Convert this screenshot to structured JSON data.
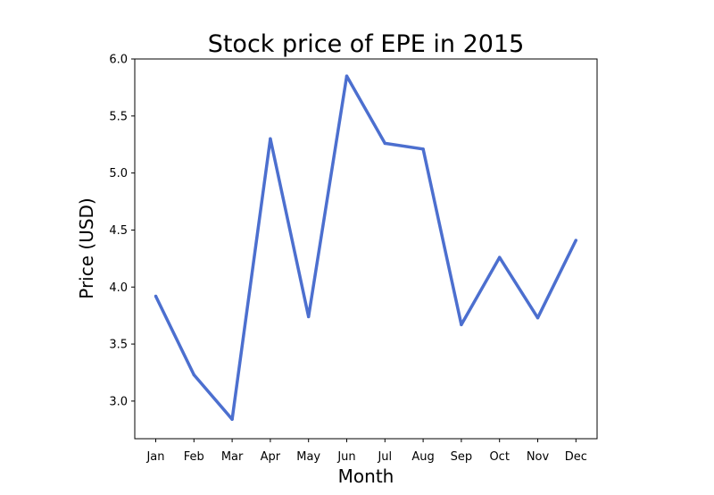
{
  "chart_data": {
    "type": "line",
    "title": "Stock price of EPE in 2015",
    "xlabel": "Month",
    "ylabel": "Price (USD)",
    "categories": [
      "Jan",
      "Feb",
      "Mar",
      "Apr",
      "May",
      "Jun",
      "Jul",
      "Aug",
      "Sep",
      "Oct",
      "Nov",
      "Dec"
    ],
    "series": [
      {
        "values": [
          3.92,
          3.23,
          2.84,
          5.3,
          3.74,
          5.85,
          5.26,
          5.21,
          3.67,
          4.26,
          3.73,
          4.41
        ],
        "color": "#4c6fcf"
      }
    ],
    "yticks": [
      "3.0",
      "3.5",
      "4.0",
      "4.5",
      "5.0",
      "5.5",
      "6.0"
    ],
    "ylim": [
      2.67,
      6.0
    ],
    "grid": false,
    "legend": "none"
  }
}
